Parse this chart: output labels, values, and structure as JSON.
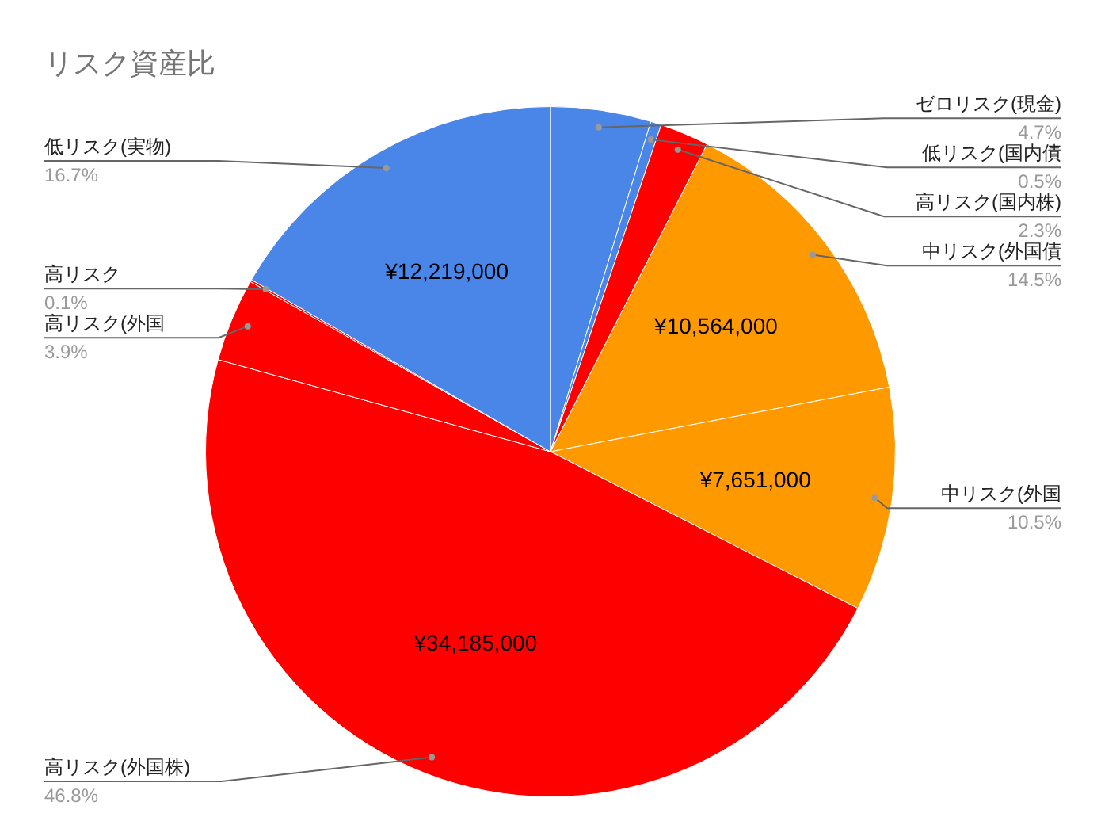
{
  "chart_data": {
    "type": "pie",
    "title": "リスク資産比",
    "categories": [
      "ゼロリスク(現金)",
      "低リスク(国内債",
      "高リスク(国内株)",
      "中リスク(外国債",
      "中リスク(外国",
      "高リスク(外国株)",
      "高リスク(外国",
      "高リスク",
      "低リスク(実物)"
    ],
    "values": [
      4.7,
      0.5,
      2.3,
      14.5,
      10.5,
      46.8,
      3.9,
      0.1,
      16.7
    ],
    "colors": [
      "#4a86e8",
      "#4a86e8",
      "#ff0000",
      "#ff9900",
      "#ff9900",
      "#ff0000",
      "#ff0000",
      "#ff0000",
      "#4a86e8"
    ],
    "value_labels": [
      "4.7%",
      "0.5%",
      "2.3%",
      "14.5%",
      "10.5%",
      "46.8%",
      "3.9%",
      "0.1%",
      "16.7%"
    ],
    "annotations": [
      {
        "text": "¥10,564,000",
        "x": "中リスク(外国債"
      },
      {
        "text": "¥7,651,000",
        "x": "中リスク(外国"
      },
      {
        "text": "¥34,185,000",
        "x": "高リスク(外国株)"
      },
      {
        "text": "¥12,219,000",
        "x": "低リスク(実物)"
      }
    ],
    "legend": false
  }
}
